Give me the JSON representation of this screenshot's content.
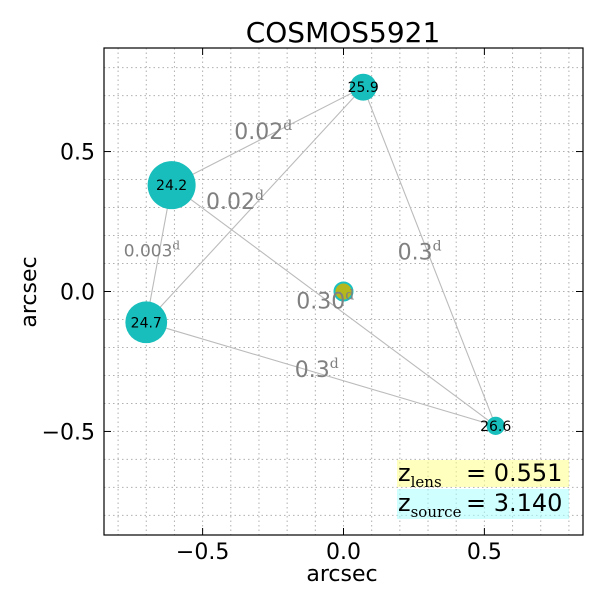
{
  "chart_data": {
    "type": "scatter",
    "title": "COSMOS5921",
    "xlabel": "arcsec",
    "ylabel": "arcsec",
    "xlim": [
      -0.85,
      0.85
    ],
    "ylim": [
      -0.87,
      0.87
    ],
    "grid": true,
    "grid_style": "dotted",
    "x_ticks": [
      {
        "value": -0.5,
        "label": "−0.5"
      },
      {
        "value": 0.0,
        "label": "0.0"
      },
      {
        "value": 0.5,
        "label": "0.5"
      }
    ],
    "y_ticks": [
      {
        "value": 0.5,
        "label": "0.5"
      },
      {
        "value": 0.0,
        "label": "0.0"
      },
      {
        "value": -0.5,
        "label": "−0.5"
      }
    ],
    "images": [
      {
        "id": "A",
        "x": -0.61,
        "y": 0.38,
        "label": "24.2",
        "mag": 24.2
      },
      {
        "id": "B",
        "x": 0.07,
        "y": 0.73,
        "label": "25.9",
        "mag": 25.9
      },
      {
        "id": "C",
        "x": -0.7,
        "y": -0.11,
        "label": "24.7",
        "mag": 24.7
      },
      {
        "id": "D",
        "x": 0.54,
        "y": -0.48,
        "label": "26.6",
        "mag": 26.6
      }
    ],
    "lens": {
      "x": 0.0,
      "y": 0.0,
      "fill": "#b5b81c",
      "edge": "#1cc0c0"
    },
    "connections": [
      {
        "from": "A",
        "to": "B",
        "label": "0.02",
        "sup": "d",
        "size": "large",
        "label_x": -0.285,
        "label_y": 0.545
      },
      {
        "from": "C",
        "to": "B",
        "label": "0.02",
        "sup": "d",
        "size": "large",
        "label_x": -0.385,
        "label_y": 0.295
      },
      {
        "from": "A",
        "to": "C",
        "label": "0.003",
        "sup": "d",
        "size": "small",
        "label_x": -0.68,
        "label_y": 0.125
      },
      {
        "from": "B",
        "to": "D",
        "label": "0.3",
        "sup": "d",
        "size": "large",
        "label_x": 0.27,
        "label_y": 0.115
      },
      {
        "from": "A",
        "to": "D",
        "label": "0.30",
        "sup": "d",
        "size": "large",
        "label_x": -0.065,
        "label_y": -0.06
      },
      {
        "from": "C",
        "to": "D",
        "label": "0.3",
        "sup": "d",
        "size": "large",
        "label_x": -0.095,
        "label_y": -0.305
      }
    ],
    "redshift": {
      "lens_sub": "lens",
      "lens_value": "= 0.551",
      "source_sub": "source",
      "source_value": "= 3.140"
    }
  },
  "colors": {
    "image_fill": "#17bebb",
    "line": "#bbbbbb",
    "delay_text": "#808080",
    "grid": "#b0b0b0",
    "lens_highlight": "#ffff66",
    "source_highlight": "#aaffff"
  }
}
